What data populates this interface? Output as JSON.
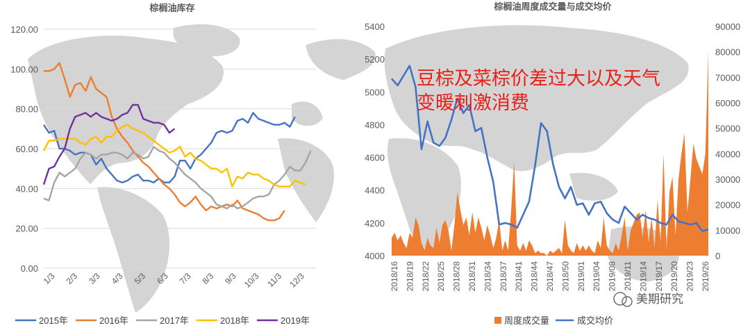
{
  "watermark": "美期研究",
  "colors": {
    "y2015": "#4472c4",
    "y2016": "#ed7d31",
    "y2017": "#a5a5a5",
    "y2018": "#ffc000",
    "y2019": "#7030a0",
    "volume": "#ed7d31",
    "price": "#4472c4"
  },
  "chart_data": [
    {
      "type": "line",
      "title": "棕榈油库存",
      "xlabel": "",
      "ylabel": "",
      "ylim": [
        0,
        120
      ],
      "yticks": [
        "0.00",
        "20.00",
        "40.00",
        "60.00",
        "80.00",
        "100.00",
        "120.00"
      ],
      "xticks": [
        "1/3",
        "2/3",
        "3/3",
        "4/3",
        "5/3",
        "6/3",
        "7/3",
        "8/3",
        "9/3",
        "10/3",
        "11/3",
        "12/3"
      ],
      "xlim": [
        0,
        52
      ],
      "grid": true,
      "legend": "bottom",
      "series": [
        {
          "name": "2015年",
          "color_key": "y2015",
          "x": [
            0,
            1,
            2,
            3,
            4,
            5,
            6,
            7,
            8,
            9,
            10,
            11,
            12,
            13,
            14,
            15,
            16,
            17,
            18,
            19,
            20,
            21,
            22,
            23,
            24,
            25,
            26,
            27,
            28,
            29,
            30,
            31,
            32,
            33,
            34,
            35,
            36,
            37,
            38,
            39,
            40,
            41,
            42,
            43,
            44,
            45,
            46,
            47,
            48
          ],
          "y": [
            72,
            68,
            69,
            60,
            60,
            59,
            57,
            58,
            58,
            57,
            52,
            55,
            50,
            47,
            44,
            43,
            44,
            46,
            47,
            44,
            44,
            43,
            45,
            43,
            43,
            46,
            54,
            54,
            50,
            55,
            57,
            60,
            63,
            68,
            69,
            68,
            69,
            74,
            75,
            73,
            78,
            75,
            74,
            73,
            72,
            72,
            73,
            71,
            76
          ]
        },
        {
          "name": "2016年",
          "color_key": "y2016",
          "x": [
            0,
            1,
            2,
            3,
            4,
            5,
            6,
            7,
            8,
            9,
            10,
            11,
            12,
            13,
            14,
            15,
            16,
            17,
            18,
            19,
            20,
            21,
            22,
            23,
            24,
            25,
            26,
            27,
            28,
            29,
            30,
            31,
            32,
            33,
            34,
            35,
            36,
            37,
            38,
            39,
            40,
            41,
            42,
            43,
            44,
            45,
            46
          ],
          "y": [
            99,
            99,
            100,
            103,
            95,
            86,
            92,
            93,
            89,
            96,
            90,
            88,
            86,
            76,
            70,
            66,
            63,
            59,
            56,
            53,
            51,
            48,
            45,
            42,
            40,
            37,
            33,
            31,
            33,
            36,
            32,
            29,
            31,
            30,
            31,
            32,
            31,
            34,
            30,
            29,
            28,
            27,
            25,
            24,
            24,
            25,
            29
          ]
        },
        {
          "name": "2017年",
          "color_key": "y2017",
          "x": [
            0,
            1,
            2,
            3,
            4,
            5,
            6,
            7,
            8,
            9,
            10,
            11,
            12,
            13,
            14,
            15,
            16,
            17,
            18,
            19,
            20,
            21,
            22,
            23,
            24,
            25,
            26,
            27,
            28,
            29,
            30,
            31,
            32,
            33,
            34,
            35,
            36,
            37,
            38,
            39,
            40,
            41,
            42,
            43,
            44,
            45,
            46,
            47,
            48,
            49,
            50,
            51
          ],
          "y": [
            35,
            34,
            43,
            48,
            46,
            48,
            50,
            55,
            58,
            57,
            55,
            57,
            57,
            58,
            58,
            57,
            55,
            58,
            57,
            55,
            56,
            61,
            59,
            58,
            55,
            53,
            50,
            47,
            45,
            43,
            40,
            38,
            36,
            32,
            31,
            30,
            32,
            30,
            31,
            33,
            35,
            36,
            36,
            37,
            42,
            44,
            47,
            51,
            49,
            49,
            53,
            59
          ]
        },
        {
          "name": "2018年",
          "color_key": "y2018",
          "x": [
            0,
            1,
            2,
            3,
            4,
            5,
            6,
            7,
            8,
            9,
            10,
            11,
            12,
            13,
            14,
            15,
            16,
            17,
            18,
            19,
            20,
            21,
            22,
            23,
            24,
            25,
            26,
            27,
            28,
            29,
            30,
            31,
            32,
            33,
            34,
            35,
            36,
            37,
            38,
            39,
            40,
            41,
            42,
            43,
            44,
            45,
            46,
            47,
            48,
            49,
            50
          ],
          "y": [
            59,
            64,
            64,
            65,
            65,
            65,
            65,
            63,
            62,
            65,
            66,
            63,
            66,
            66,
            69,
            71,
            72,
            70,
            69,
            68,
            66,
            64,
            62,
            60,
            58,
            59,
            61,
            56,
            58,
            55,
            54,
            52,
            50,
            50,
            48,
            50,
            41,
            46,
            45,
            48,
            47,
            47,
            45,
            44,
            42,
            41,
            41,
            41,
            44,
            43,
            42
          ]
        },
        {
          "name": "2019年",
          "color_key": "y2019",
          "x": [
            0,
            1,
            2,
            3,
            4,
            5,
            6,
            7,
            8,
            9,
            10,
            11,
            12,
            13,
            14,
            15,
            16,
            17,
            18,
            19,
            20,
            21,
            22,
            23,
            24,
            25
          ],
          "y": [
            42,
            50,
            51,
            56,
            60,
            70,
            76,
            77,
            78,
            76,
            78,
            76,
            75,
            74,
            75,
            77,
            78,
            82,
            82,
            75,
            74,
            73,
            73,
            72,
            68,
            70
          ]
        }
      ]
    },
    {
      "type": "bar+line",
      "title": "棕榈油周度成交量与成交均价",
      "xlabel": "",
      "ylabel": "",
      "annotation": [
        "豆棕及菜棕价差过大以及天气",
        "变暖刺激消费"
      ],
      "legend": "bottom",
      "legend_entries": [
        "周度成交量",
        "成交均价"
      ],
      "xticks": [
        "2018/16",
        "2018/19",
        "2018/22",
        "2018/25",
        "2018/28",
        "2018/31",
        "2018/34",
        "2018/37",
        "2018/41",
        "2018/44",
        "2018/47",
        "2018/50",
        "2019/01",
        "2019/04",
        "2019/08",
        "2019/11",
        "2019/14",
        "2019/17",
        "2019/20",
        "2019/23",
        "2019/26"
      ],
      "left_axis": {
        "ylim": [
          4000,
          5400
        ],
        "yticks": [
          "4000",
          "4200",
          "4400",
          "4600",
          "4800",
          "5000",
          "5200",
          "5400"
        ]
      },
      "right_axis": {
        "ylim": [
          0,
          90000
        ],
        "yticks": [
          "0",
          "10000",
          "20000",
          "30000",
          "40000",
          "50000",
          "60000",
          "70000",
          "80000",
          "90000"
        ]
      },
      "series": [
        {
          "name": "周度成交量",
          "type": "area",
          "axis": "right",
          "color_key": "volume",
          "values": [
            7000,
            9000,
            6000,
            8000,
            5000,
            3000,
            9000,
            7000,
            15000,
            12000,
            5000,
            2000,
            7000,
            4000,
            3000,
            11000,
            5000,
            12000,
            14000,
            10000,
            2000,
            12000,
            25000,
            18000,
            12000,
            15000,
            8000,
            17000,
            9000,
            15000,
            11000,
            6000,
            12000,
            8000,
            3000,
            7000,
            14000,
            2000,
            6000,
            2000,
            18000,
            37000,
            4000,
            2000,
            5000,
            2000,
            6000,
            4000,
            1000,
            2000,
            1000,
            1000,
            0,
            2000,
            1000,
            2000,
            3000,
            1000,
            14000,
            4000,
            2000,
            1000,
            5000,
            2000,
            4000,
            2000,
            4000,
            2000,
            1000,
            6000,
            3000,
            15000,
            4000,
            2000,
            1000,
            5000,
            2000,
            8000,
            15000,
            2000,
            10000,
            13000,
            16000,
            17000,
            7000,
            18000,
            5000,
            15000,
            3000,
            22000,
            5000,
            40000,
            2000,
            25000,
            31000,
            8000,
            30000,
            40000,
            48000,
            17000,
            30000,
            44000,
            38000,
            35000,
            32000,
            40000,
            80000
          ],
          "x": [
            0,
            1,
            2,
            3,
            4,
            5,
            6,
            7,
            8,
            9,
            10,
            11,
            12,
            13,
            14,
            15,
            16,
            17,
            18,
            19,
            20,
            21,
            22,
            23,
            24,
            25,
            26,
            27,
            28,
            29,
            30,
            31,
            32,
            33,
            34,
            35,
            36,
            37,
            38,
            39,
            40,
            41,
            42,
            43,
            44,
            45,
            46,
            47,
            48,
            49,
            50,
            51,
            52,
            53,
            54,
            55,
            56,
            57,
            58,
            59,
            60,
            61,
            62,
            63,
            64,
            65,
            66,
            67,
            68,
            69,
            70,
            71,
            72,
            73,
            74,
            75,
            76,
            77,
            78,
            79,
            80,
            81,
            82,
            83,
            84,
            85,
            86,
            87,
            88,
            89,
            90,
            91,
            92,
            93,
            94,
            95,
            96,
            97,
            98,
            99,
            100,
            101,
            102,
            103,
            104,
            105,
            106
          ]
        },
        {
          "name": "成交均价",
          "type": "line",
          "axis": "left",
          "color_key": "price",
          "x": [
            0,
            2,
            4,
            6,
            8,
            10,
            12,
            14,
            16,
            18,
            20,
            22,
            24,
            26,
            28,
            30,
            32,
            34,
            36,
            38,
            40,
            42,
            44,
            46,
            48,
            50,
            52,
            54,
            56,
            58,
            60,
            62,
            64,
            66,
            68,
            70,
            72,
            74,
            76,
            78,
            80,
            82,
            84,
            86,
            88,
            90,
            92,
            94,
            96,
            98,
            100,
            102,
            104,
            106
          ],
          "y": [
            5080,
            5040,
            5100,
            5160,
            5030,
            4650,
            4820,
            4690,
            4670,
            4720,
            4830,
            4960,
            4870,
            4920,
            4760,
            4780,
            4600,
            4450,
            4190,
            4200,
            4190,
            4170,
            4250,
            4330,
            4550,
            4810,
            4760,
            4560,
            4420,
            4350,
            4420,
            4310,
            4320,
            4250,
            4320,
            4330,
            4260,
            4220,
            4200,
            4300,
            4260,
            4220,
            4250,
            4230,
            4220,
            4200,
            4190,
            4250,
            4210,
            4200,
            4190,
            4200,
            4150,
            4160
          ]
        }
      ]
    }
  ]
}
